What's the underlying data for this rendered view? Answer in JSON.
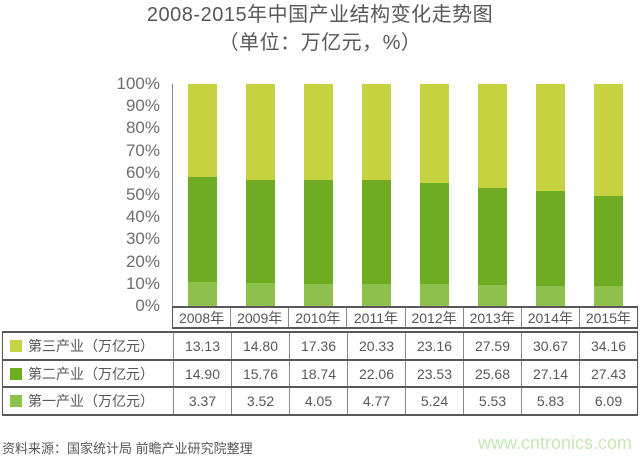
{
  "page": {
    "title": "2008-2015年中国产业结构变化走势图",
    "subtitle": "（单位：万亿元，%）"
  },
  "chart_data": {
    "type": "bar",
    "stacked": true,
    "normalized_to_percent": true,
    "title": "2008-2015年中国产业结构变化走势图",
    "subtitle": "（单位：万亿元，%）",
    "categories": [
      "2008年",
      "2009年",
      "2010年",
      "2011年",
      "2012年",
      "2013年",
      "2014年",
      "2015年"
    ],
    "series": [
      {
        "name": "第一产业（万亿元）",
        "color": "#8dc04d",
        "values": [
          3.37,
          3.52,
          4.05,
          4.77,
          5.24,
          5.53,
          5.83,
          6.09
        ]
      },
      {
        "name": "第二产业（万亿元）",
        "color": "#6ead23",
        "values": [
          14.9,
          15.76,
          18.74,
          22.06,
          23.53,
          25.68,
          27.14,
          27.43
        ]
      },
      {
        "name": "第三产业（万亿元）",
        "color": "#c6d23f",
        "values": [
          13.13,
          14.8,
          17.36,
          20.33,
          23.16,
          27.59,
          30.67,
          34.16
        ]
      }
    ],
    "xlabel": "",
    "ylabel": "",
    "ylim": [
      0,
      100
    ],
    "yticks": [
      "100%",
      "90%",
      "80%",
      "70%",
      "60%",
      "50%",
      "40%",
      "30%",
      "20%",
      "10%",
      "0%"
    ],
    "grid": false,
    "legend_position": "table-rows-left"
  },
  "footer": {
    "source": "资料来源：国家统计局 前瞻产业研究院整理",
    "watermark": "www.cntronics.com"
  },
  "colors": {
    "first_industry": "#8dc04d",
    "second_industry": "#6ead23",
    "third_industry": "#c6d23f",
    "text_dark": "#595757",
    "text_axis": "#6e6e6e",
    "border_dark": "#595757",
    "border_light": "#8a8a8a",
    "watermark": "#c7e7b6"
  }
}
